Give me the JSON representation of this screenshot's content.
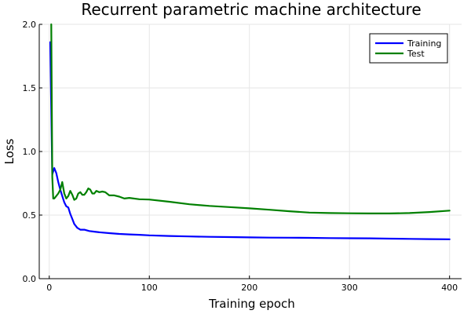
{
  "chart_data": {
    "type": "line",
    "title": "Recurrent parametric machine architecture",
    "xlabel": "Training epoch",
    "ylabel": "Loss",
    "xlim": [
      -10,
      412
    ],
    "ylim": [
      0,
      2.0
    ],
    "xticks": [
      0,
      100,
      200,
      300,
      400
    ],
    "yticks": [
      0.0,
      0.5,
      1.0,
      1.5,
      2.0
    ],
    "xtick_labels": [
      "0",
      "100",
      "200",
      "300",
      "400"
    ],
    "ytick_labels": [
      "0.0",
      "0.5",
      "1.0",
      "1.5",
      "2.0"
    ],
    "grid": true,
    "legend_position": "top-right",
    "series": [
      {
        "name": "Training",
        "color": "#0000ff",
        "x": [
          1,
          3,
          5,
          7,
          9,
          11,
          13,
          15,
          17,
          19,
          21,
          23,
          25,
          28,
          31,
          35,
          40,
          45,
          50,
          60,
          70,
          80,
          90,
          100,
          120,
          140,
          160,
          180,
          200,
          220,
          240,
          260,
          280,
          300,
          320,
          340,
          360,
          380,
          400
        ],
        "y": [
          1.86,
          0.82,
          0.87,
          0.83,
          0.76,
          0.7,
          0.65,
          0.6,
          0.57,
          0.56,
          0.51,
          0.47,
          0.43,
          0.4,
          0.385,
          0.385,
          0.375,
          0.37,
          0.365,
          0.358,
          0.352,
          0.348,
          0.345,
          0.341,
          0.336,
          0.332,
          0.329,
          0.327,
          0.325,
          0.323,
          0.322,
          0.321,
          0.319,
          0.318,
          0.317,
          0.315,
          0.313,
          0.311,
          0.31
        ]
      },
      {
        "name": "Test",
        "color": "#008000",
        "x": [
          2,
          3,
          4,
          5,
          7,
          9,
          11,
          13,
          15,
          17,
          19,
          21,
          23,
          25,
          27,
          29,
          31,
          33,
          35,
          37,
          39,
          41,
          43,
          45,
          47,
          50,
          53,
          56,
          60,
          65,
          70,
          75,
          80,
          90,
          100,
          120,
          140,
          160,
          180,
          200,
          220,
          240,
          260,
          280,
          300,
          320,
          340,
          360,
          380,
          400
        ],
        "y": [
          2.0,
          0.8,
          0.63,
          0.63,
          0.65,
          0.67,
          0.7,
          0.76,
          0.67,
          0.63,
          0.65,
          0.69,
          0.66,
          0.62,
          0.63,
          0.67,
          0.68,
          0.66,
          0.66,
          0.68,
          0.71,
          0.7,
          0.67,
          0.67,
          0.69,
          0.68,
          0.685,
          0.68,
          0.655,
          0.655,
          0.645,
          0.63,
          0.635,
          0.625,
          0.622,
          0.605,
          0.585,
          0.572,
          0.563,
          0.553,
          0.542,
          0.53,
          0.52,
          0.516,
          0.514,
          0.513,
          0.513,
          0.516,
          0.524,
          0.535
        ]
      }
    ]
  }
}
